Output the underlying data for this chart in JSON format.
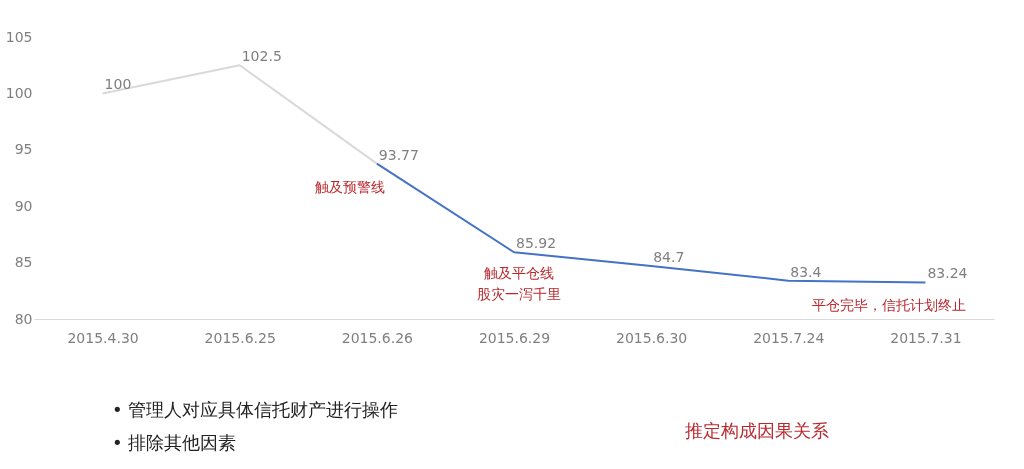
{
  "chart_data": {
    "type": "line",
    "categories": [
      "2015.4.30",
      "2015.6.25",
      "2015.6.26",
      "2015.6.29",
      "2015.6.30",
      "2015.7.24",
      "2015.7.31"
    ],
    "series": [
      {
        "color": "#d9d9d9",
        "values": [
          100,
          102.5,
          93.77,
          null,
          null,
          null,
          null
        ],
        "value_labels": [
          "100",
          "102.5",
          null,
          null,
          null,
          null,
          null
        ]
      },
      {
        "color": "#4472c4",
        "values": [
          null,
          null,
          93.77,
          85.92,
          84.7,
          83.4,
          83.24
        ],
        "value_labels": [
          null,
          null,
          "93.77",
          "85.92",
          "84.7",
          "83.4",
          "83.24"
        ]
      }
    ],
    "ylim": [
      80,
      105
    ],
    "yticks": [
      80,
      85,
      90,
      95,
      100,
      105
    ],
    "grid": false,
    "marker": "none",
    "line_style": "solid",
    "annotations": [
      "触及预警线",
      "触及平仓线",
      "股灾一泻千里",
      "平仓完毕，信托计划终止",
      "• 管理人对应具体信托财产进行操作",
      "• 排除其他因素",
      "推定构成因果关系"
    ]
  }
}
